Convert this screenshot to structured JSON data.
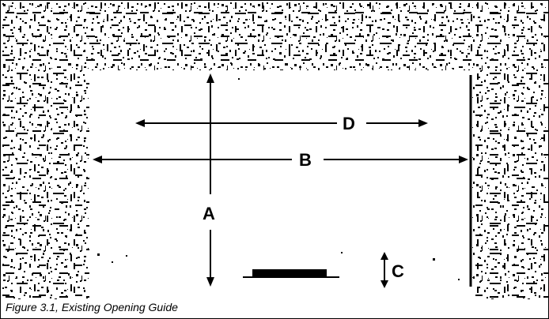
{
  "figure": {
    "caption": "Figure 3.1, Existing Opening Guide",
    "labels": {
      "A": "A",
      "B": "B",
      "C": "C",
      "D": "D"
    },
    "colors": {
      "ink": "#000000",
      "paper": "#ffffff"
    }
  }
}
